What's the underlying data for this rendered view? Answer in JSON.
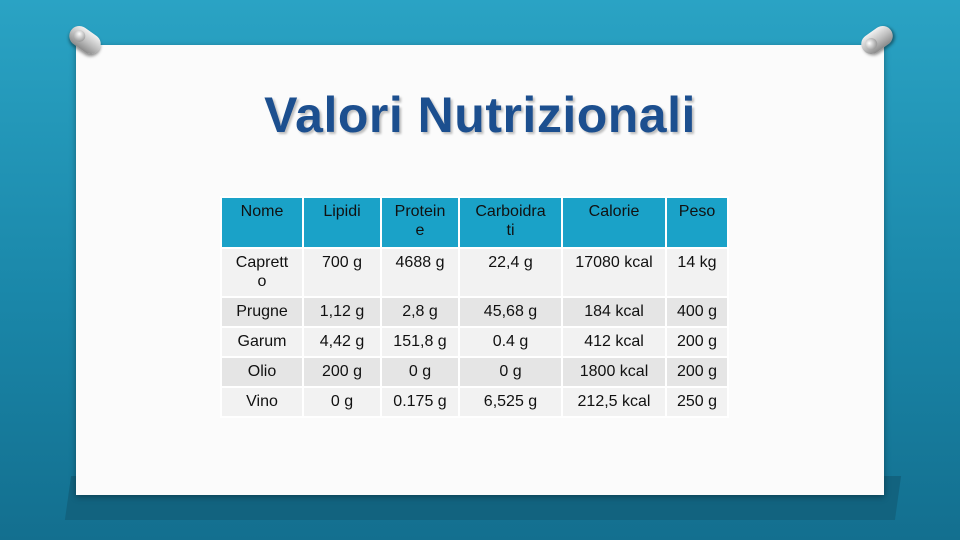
{
  "title": "Valori Nutrizionali",
  "table": {
    "headers": [
      "Nome",
      "Lipidi",
      "Protein e",
      "Carboidra ti",
      "Calorie",
      "Peso"
    ],
    "header_lines": [
      [
        "Nome"
      ],
      [
        "Lipidi"
      ],
      [
        "Protein",
        "e"
      ],
      [
        "Carboidra",
        "ti"
      ],
      [
        "Calorie"
      ],
      [
        "Peso"
      ]
    ],
    "rows": [
      [
        "Caprett o",
        "700 g",
        "4688 g",
        "22,4 g",
        "17080 kcal",
        "14 kg"
      ],
      [
        "Prugne",
        "1,12 g",
        "2,8 g",
        "45,68 g",
        "184 kcal",
        "400 g"
      ],
      [
        "Garum",
        "4,42 g",
        "151,8 g",
        "0.4 g",
        "412 kcal",
        "200 g"
      ],
      [
        "Olio",
        "200 g",
        "0 g",
        "0 g",
        "1800 kcal",
        "200 g"
      ],
      [
        "Vino",
        "0 g",
        "0.175 g",
        "6,525 g",
        "212,5 kcal",
        "250 g"
      ]
    ],
    "first_cell_lines": [
      "Caprett",
      "o"
    ]
  },
  "colors": {
    "header_bg": "#1aa2c8",
    "title": "#1c4f8f",
    "background": "#1a87a9"
  }
}
